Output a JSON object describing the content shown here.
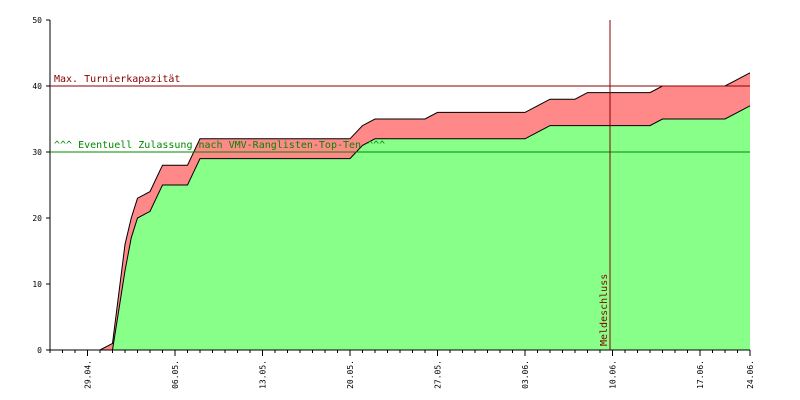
{
  "chart_data": {
    "type": "area",
    "xlim": [
      0,
      56
    ],
    "ylim": [
      0,
      50
    ],
    "grid": false,
    "yticks": [
      0,
      10,
      20,
      30,
      40,
      50
    ],
    "xticks": [
      {
        "x": 3,
        "label": "29.04."
      },
      {
        "x": 10,
        "label": "06.05."
      },
      {
        "x": 17,
        "label": "13.05."
      },
      {
        "x": 24,
        "label": "20.05."
      },
      {
        "x": 31,
        "label": "27.05."
      },
      {
        "x": 38,
        "label": "03.06."
      },
      {
        "x": 45,
        "label": "10.06."
      },
      {
        "x": 52,
        "label": "17.06."
      },
      {
        "x": 59,
        "label": "24.06."
      }
    ],
    "series": [
      {
        "role": "total",
        "color": "#ff8888",
        "x": [
          0,
          4,
          5,
          6,
          6.5,
          7,
          7.5,
          8,
          8.5,
          9,
          10,
          11,
          11.5,
          12,
          13,
          24,
          24.5,
          25,
          25.5,
          26,
          27,
          28,
          29,
          30,
          31,
          32,
          33,
          34,
          35,
          36,
          37,
          38,
          39,
          40,
          40.5,
          41,
          42,
          43,
          44,
          45,
          46,
          47,
          48,
          49,
          50,
          51,
          52,
          53,
          54,
          55,
          56
        ],
        "y": [
          0,
          0,
          1,
          16,
          20,
          23,
          23.5,
          24,
          26,
          28,
          28,
          28,
          30,
          32,
          32,
          32,
          33,
          34,
          34.5,
          35,
          35,
          35,
          35,
          35,
          36,
          36,
          36,
          36,
          36,
          36,
          36,
          36,
          37,
          38,
          38,
          38,
          38,
          39,
          39,
          39,
          39,
          39,
          39,
          40,
          40,
          40,
          40,
          40,
          40,
          41,
          42
        ]
      },
      {
        "role": "accepted",
        "color": "#88ff88",
        "x": [
          0,
          4,
          5,
          6,
          6.5,
          7,
          7.5,
          8,
          8.5,
          9,
          10,
          11,
          11.5,
          12,
          13,
          24,
          24.5,
          25,
          25.5,
          26,
          27,
          28,
          29,
          30,
          31,
          32,
          33,
          34,
          35,
          36,
          37,
          38,
          39,
          40,
          40.5,
          41,
          42,
          43,
          44,
          45,
          46,
          47,
          48,
          49,
          50,
          51,
          52,
          53,
          54,
          55,
          56
        ],
        "y": [
          0,
          0,
          0,
          12,
          17,
          20,
          20.5,
          21,
          23,
          25,
          25,
          25,
          27,
          29,
          29,
          29,
          30,
          31,
          31.5,
          32,
          32,
          32,
          32,
          32,
          32,
          32,
          32,
          32,
          32,
          32,
          32,
          32,
          33,
          34,
          34,
          34,
          34,
          34,
          34,
          34,
          34,
          34,
          34,
          35,
          35,
          35,
          35,
          35,
          35,
          36,
          37
        ]
      }
    ],
    "hlines": [
      {
        "y": 40,
        "color": "#880000",
        "label": "Max. Turnierkapazität"
      },
      {
        "y": 30,
        "color": "#008800",
        "label": "^^^ Eventuell Zulassung nach VMV-Ranglisten-Top-Ten ^^^"
      }
    ],
    "vlines": [
      {
        "x": 44.8,
        "color": "#880000",
        "label": "Meldeschluss"
      }
    ]
  }
}
